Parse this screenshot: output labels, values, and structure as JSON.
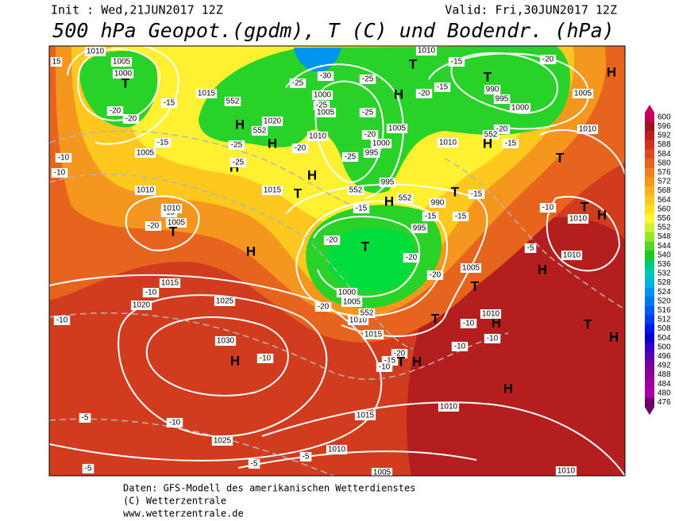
{
  "header": {
    "init": "Init : Wed,21JUN2017 12Z",
    "valid": "Valid: Fri,30JUN2017 12Z",
    "title": "500 hPa Geopot.(gpdm), T (C) und Bodendr. (hPa)"
  },
  "map": {
    "labels": [
      "1010",
      "1005",
      "1000",
      "T",
      "-20",
      "-20",
      "-15",
      "1015",
      "552",
      "H",
      "552",
      "1020",
      "H",
      "-25",
      "-20",
      "1010",
      "H",
      "-25",
      "H",
      "1015",
      "T",
      "-25",
      "-30",
      "1000",
      "-25",
      "1005",
      "-25",
      "-25",
      "H",
      "T",
      "-20",
      "-15",
      "1010",
      "-15",
      "T",
      "990",
      "995",
      "1000",
      "-20",
      "H",
      "1005",
      "1010",
      "-20",
      "552",
      "H",
      "-15",
      "1010",
      "1005",
      "1000",
      "-20",
      "995",
      "-25",
      "552",
      "995",
      "H",
      "552",
      "990",
      "T",
      "-15",
      "-15",
      "-15",
      "995",
      "-15",
      "T",
      "-20",
      "-20",
      "-20",
      "1000",
      "1005",
      "1010",
      "552",
      "-20",
      "1015",
      "1005",
      "T",
      "T",
      "-10",
      "H",
      "1010",
      "-10",
      "-10",
      "-20",
      "-15",
      "T",
      "H",
      "-10",
      "H",
      "T",
      "H",
      "1010",
      "H",
      "-5",
      "-10",
      "1010",
      "T",
      "H",
      "T",
      "-15",
      "1010",
      "1005",
      "T",
      "-20",
      "1005",
      "1010",
      "-15",
      "-10",
      "-10",
      "15",
      "H",
      "1015",
      "-10",
      "1020",
      "1025",
      "-10",
      "1030",
      "H",
      "-10",
      "-10",
      "-5",
      "1025",
      "1015",
      "1010",
      "-5",
      "1010",
      "-5",
      "-5",
      "1005",
      "1010"
    ]
  },
  "colorbar": {
    "values": [
      600,
      596,
      592,
      588,
      584,
      580,
      576,
      572,
      568,
      564,
      560,
      556,
      552,
      548,
      544,
      540,
      536,
      532,
      528,
      524,
      520,
      516,
      512,
      508,
      504,
      500,
      496,
      492,
      488,
      484,
      480,
      476
    ],
    "colors": [
      "#c8005a",
      "#a0141e",
      "#be1e1e",
      "#d2321e",
      "#dc4b1e",
      "#e6641e",
      "#f07d1e",
      "#f5961e",
      "#faaf1e",
      "#ffc81e",
      "#ffe11e",
      "#fff532",
      "#d2f032",
      "#96e628",
      "#50d728",
      "#1ec81e",
      "#00c878",
      "#00c8b4",
      "#00b4dc",
      "#0096f0",
      "#0078f0",
      "#005af0",
      "#003cf0",
      "#0014f0",
      "#0000d2",
      "#3200c8",
      "#5a00b4",
      "#7800a0",
      "#8c0096",
      "#a000a0",
      "#aa00aa",
      "#6e0064"
    ]
  },
  "footer": {
    "lines": [
      "Daten: GFS-Modell des amerikanischen Wetterdienstes",
      "(C) Wetterzentrale",
      "www.wetterzentrale.de"
    ]
  }
}
